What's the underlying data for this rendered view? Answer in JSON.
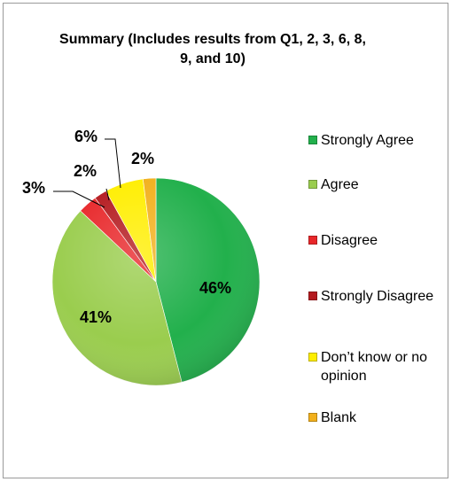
{
  "chart_data": {
    "type": "pie",
    "title": "Summary (Includes results from Q1, 2, 3, 6, 8, 9, and 10)",
    "categories": [
      "Strongly Agree",
      "Agree",
      "Disagree",
      "Strongly Disagree",
      "Don’t know or no opinion",
      "Blank"
    ],
    "values": [
      46,
      41,
      3,
      2,
      6,
      2
    ],
    "data_labels": [
      "46%",
      "41%",
      "3%",
      "2%",
      "6%",
      "2%"
    ],
    "colors": [
      "#22b04c",
      "#9acd4e",
      "#e8272a",
      "#b41a1f",
      "#ffee00",
      "#f2b01c"
    ],
    "legend_position": "right",
    "label_color": "#000000"
  }
}
